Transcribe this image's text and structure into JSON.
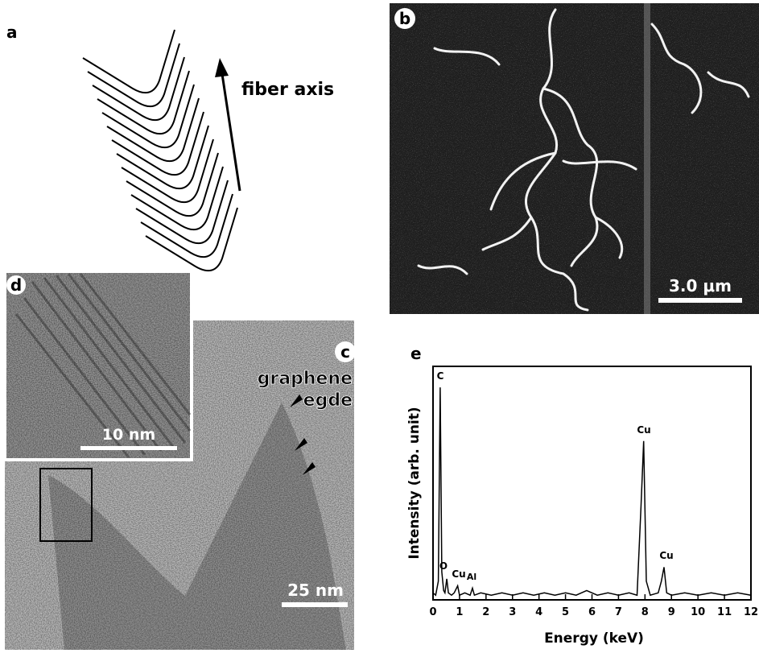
{
  "panel_a": {
    "label": "a",
    "arrow_label": "fiber axis"
  },
  "panel_b": {
    "label": "b",
    "scale_bar": "3.0 μm"
  },
  "panel_c": {
    "label": "c",
    "annotation_line1": "graphene",
    "annotation_line2": "egde",
    "scale_bar": "25 nm"
  },
  "panel_d": {
    "label": "d",
    "scale_bar": "10 nm"
  },
  "chart_data": {
    "type": "line",
    "panel_label": "e",
    "x_label": "Energy (keV)",
    "y_label": "Intensity (arb. unit)",
    "x": [
      0,
      0.1,
      0.2,
      0.27,
      0.33,
      0.4,
      0.45,
      0.52,
      0.58,
      0.7,
      0.8,
      0.93,
      1.0,
      1.2,
      1.4,
      1.49,
      1.56,
      1.8,
      2.2,
      2.6,
      3.0,
      3.4,
      3.8,
      4.2,
      4.6,
      5.0,
      5.4,
      5.8,
      6.2,
      6.6,
      7.0,
      7.4,
      7.7,
      7.85,
      7.95,
      8.05,
      8.2,
      8.5,
      8.62,
      8.72,
      8.82,
      9.0,
      9.5,
      10,
      10.5,
      11,
      11.5,
      12
    ],
    "values": [
      3,
      2,
      8,
      91,
      12,
      4,
      3,
      9,
      3,
      2,
      3,
      6,
      2,
      3,
      2,
      5,
      2,
      3,
      2,
      3,
      2,
      3,
      2,
      3,
      2,
      3,
      2,
      4,
      2,
      3,
      2,
      3,
      2,
      40,
      68,
      8,
      2,
      3,
      8,
      14,
      3,
      2,
      3,
      2,
      3,
      2,
      3,
      2
    ],
    "color": "#000000",
    "xlim": [
      0,
      12
    ],
    "xticks": [
      0,
      1,
      2,
      3,
      4,
      5,
      6,
      7,
      8,
      9,
      10,
      11,
      12
    ],
    "ylim": [
      0,
      100
    ],
    "annotations": [
      "C",
      "O",
      "Cu",
      "Al",
      "Cu",
      "Cu"
    ]
  }
}
